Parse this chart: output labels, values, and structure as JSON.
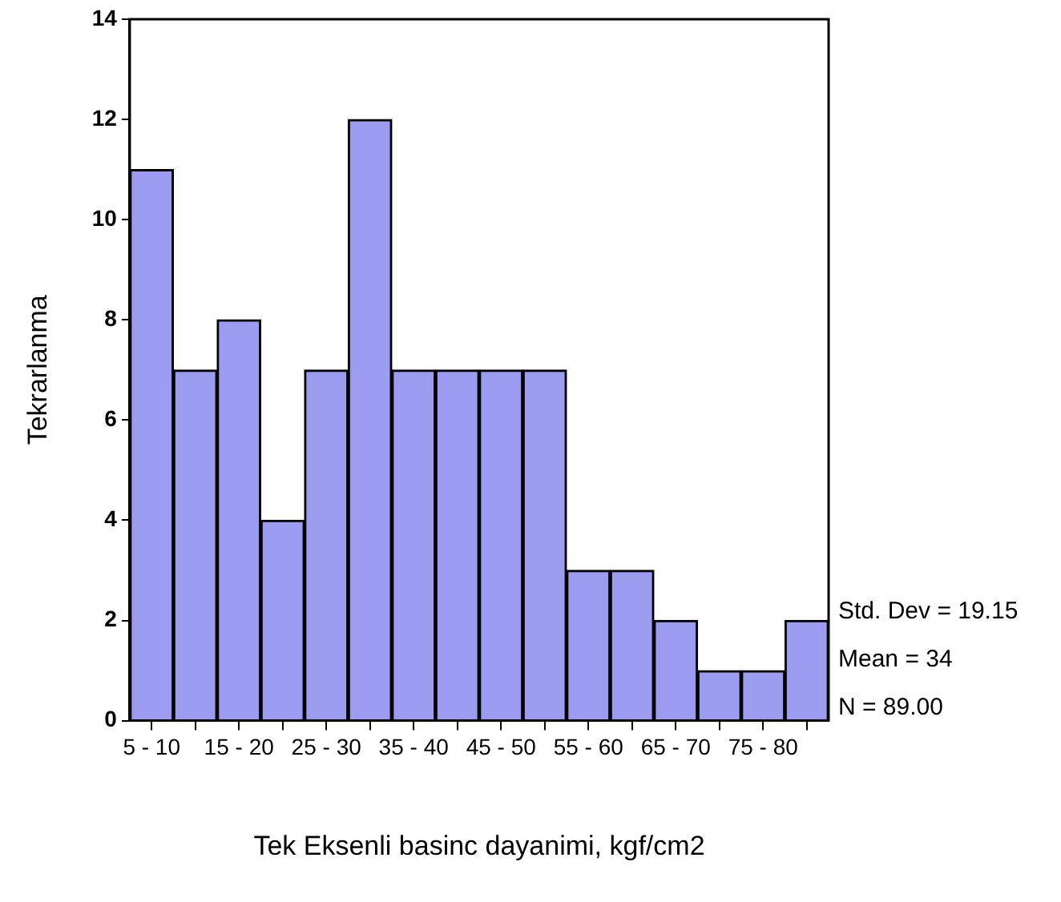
{
  "chart_data": {
    "type": "bar",
    "xlabel": "Tek Eksenli basinc dayanimi, kgf/cm2",
    "ylabel": "Tekrarlanma",
    "categories": [
      "5 - 10",
      null,
      "15 - 20",
      null,
      "25 - 30",
      null,
      "35 - 40",
      null,
      "45 - 50",
      null,
      "55 - 60",
      null,
      "65 - 70",
      null,
      "75 - 80",
      null
    ],
    "values": [
      11,
      7,
      8,
      4,
      7,
      12,
      7,
      7,
      7,
      7,
      3,
      3,
      2,
      1,
      1,
      2
    ],
    "color": "#9b9bef",
    "ylim": [
      0,
      14
    ],
    "yticks": [
      0,
      2,
      4,
      6,
      8,
      10,
      12,
      14
    ],
    "legend": false,
    "annotations": [
      "Std. Dev = 19.15",
      "Mean = 34",
      "N = 89.00"
    ]
  }
}
